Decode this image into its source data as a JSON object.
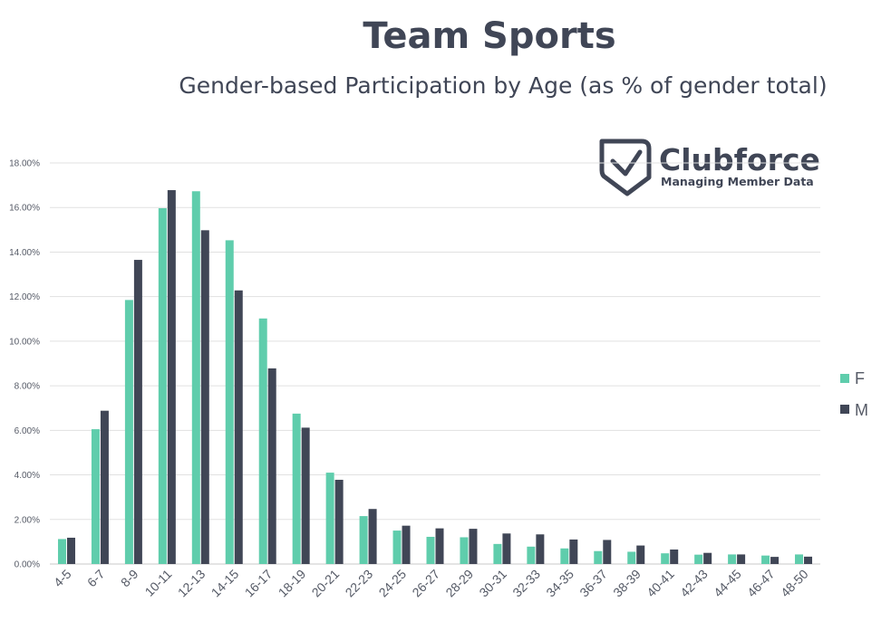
{
  "chart_data": {
    "type": "bar",
    "title": "Team Sports",
    "subtitle": "Gender-based Participation by Age (as % of gender total)",
    "categories": [
      "4-5",
      "6-7",
      "8-9",
      "10-11",
      "12-13",
      "14-15",
      "16-17",
      "18-19",
      "20-21",
      "22-23",
      "24-25",
      "26-27",
      "28-29",
      "30-31",
      "32-33",
      "34-35",
      "36-37",
      "38-39",
      "40-41",
      "42-43",
      "44-45",
      "46-47",
      "48-50"
    ],
    "series": [
      {
        "name": "F",
        "color": "#5fcdac",
        "values": [
          1.12,
          6.05,
          11.85,
          15.97,
          16.73,
          14.53,
          11.02,
          6.75,
          4.1,
          2.15,
          1.5,
          1.22,
          1.2,
          0.9,
          0.78,
          0.7,
          0.58,
          0.55,
          0.48,
          0.42,
          0.43,
          0.38,
          0.43
        ]
      },
      {
        "name": "M",
        "color": "#404656",
        "values": [
          1.18,
          6.88,
          13.65,
          16.78,
          14.98,
          12.28,
          8.78,
          6.12,
          3.78,
          2.47,
          1.72,
          1.6,
          1.58,
          1.37,
          1.33,
          1.1,
          1.08,
          0.83,
          0.65,
          0.5,
          0.43,
          0.32,
          0.33
        ]
      }
    ],
    "yticks": [
      "0.00%",
      "2.00%",
      "4.00%",
      "6.00%",
      "8.00%",
      "10.00%",
      "12.00%",
      "14.00%",
      "16.00%",
      "18.00%"
    ],
    "ylim": [
      0,
      18
    ],
    "grid": true,
    "legend_position": "right"
  },
  "logo": {
    "name": "Clubforce",
    "tagline": "Managing Member Data",
    "icon": "shield-check-icon"
  }
}
